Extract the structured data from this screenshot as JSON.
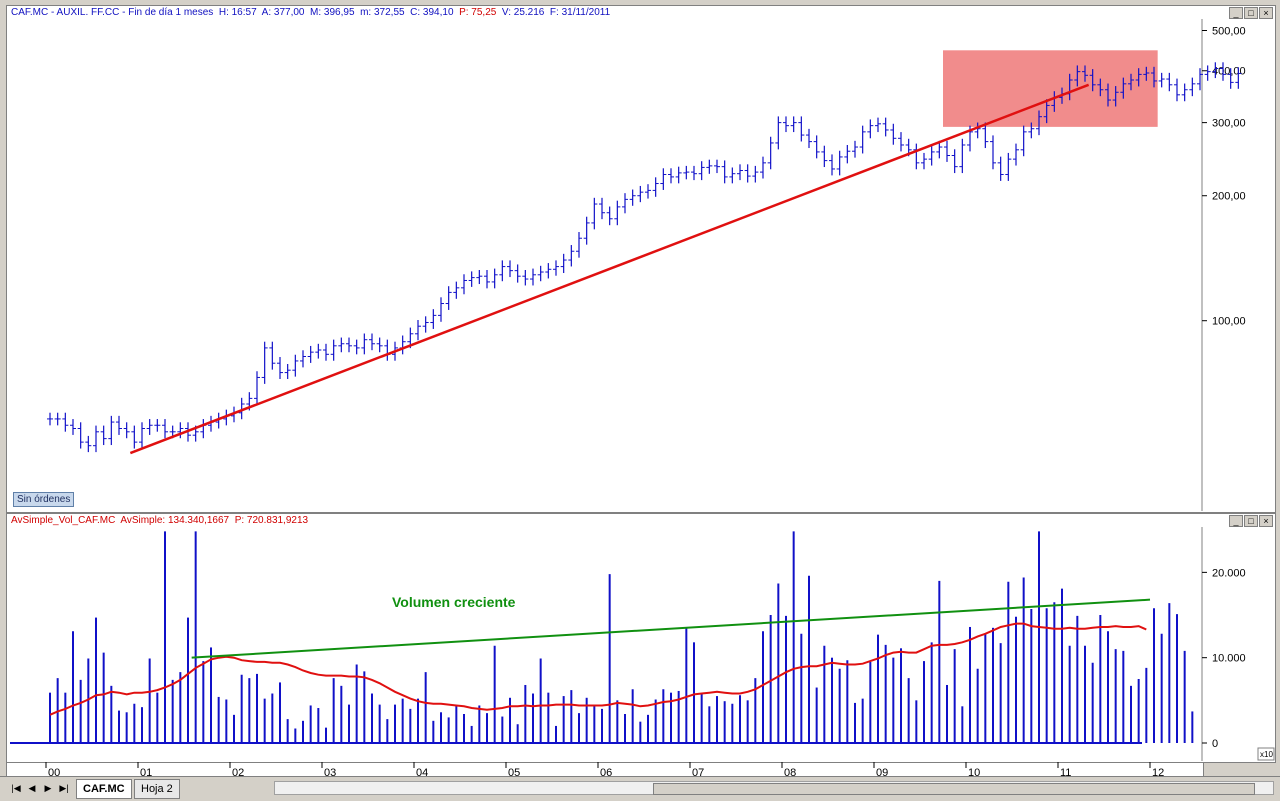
{
  "price_pane": {
    "header": {
      "symbol": "CAF.MC - AUXIL. FF.CC - Fin de día 1 meses",
      "h_label": "H: 16:57",
      "a_label": "A: 377,00",
      "m_label": "M: 396,95",
      "min_label": "m: 372,55",
      "c_label": "C: 394,10",
      "p_label": "P: 75,25",
      "v_label": "V: 25.216",
      "f_label": "F: 31/11/2011"
    },
    "sin_ordenes": "Sin órdenes"
  },
  "volume_pane": {
    "header": {
      "indicator": "AvSimple_Vol_CAF.MC",
      "avsimple_label": "AvSimple: 134.340,1667",
      "p_label": "P: 720.831,9213"
    },
    "annotation": "Volumen creciente",
    "x10": "x10"
  },
  "window_buttons": [
    "_",
    "□",
    "×"
  ],
  "tabs": [
    "CAF.MC",
    "Hoja 2"
  ],
  "nav_icons": [
    "first-icon",
    "prev-icon",
    "next-icon",
    "last-icon"
  ],
  "chart_data": [
    {
      "type": "ohlc",
      "scale": "log",
      "y_ticks": [
        "500,00",
        "400,00",
        "300,00",
        "200,00",
        "100,00"
      ],
      "y_tick_values": [
        500,
        400,
        300,
        200,
        100
      ],
      "ylim": [
        35,
        530
      ],
      "x_ticks": [
        "00",
        "01",
        "02",
        "03",
        "04",
        "05",
        "06",
        "07",
        "08",
        "09",
        "10",
        "11",
        "12"
      ],
      "series_color": "#1010c8",
      "monthly_close": [
        58,
        58,
        56,
        55,
        51,
        50,
        54,
        52,
        57,
        55,
        54,
        51,
        55,
        56,
        56,
        54,
        54,
        55,
        53,
        54,
        56,
        57,
        58,
        59,
        60,
        63,
        65,
        73,
        86,
        79,
        75,
        76,
        80,
        82,
        84,
        85,
        83,
        87,
        88,
        87,
        86,
        90,
        88,
        87,
        83,
        86,
        89,
        93,
        97,
        99,
        103,
        110,
        117,
        120,
        125,
        127,
        128,
        124,
        129,
        135,
        132,
        128,
        126,
        129,
        131,
        133,
        135,
        140,
        147,
        158,
        172,
        191,
        182,
        176,
        188,
        196,
        200,
        204,
        206,
        214,
        225,
        222,
        227,
        228,
        226,
        234,
        236,
        235,
        222,
        226,
        230,
        223,
        228,
        240,
        268,
        300,
        295,
        300,
        280,
        270,
        255,
        243,
        232,
        248,
        256,
        262,
        285,
        295,
        298,
        288,
        275,
        265,
        258,
        240,
        245,
        255,
        262,
        250,
        235,
        265,
        285,
        290,
        270,
        240,
        225,
        245,
        258,
        285,
        290,
        310,
        330,
        345,
        352,
        380,
        398,
        390,
        370,
        360,
        340,
        355,
        372,
        380,
        392,
        395,
        378,
        382,
        370,
        350,
        360,
        372,
        392,
        398,
        405,
        392,
        375,
        394
      ],
      "trendlines": [
        {
          "name": "price-support",
          "color": "#e01010",
          "from": [
            "2000-12",
            48
          ],
          "to": [
            "2011-05",
            370
          ]
        }
      ],
      "highlight_box": {
        "color": "#f08080",
        "from_date": "2009-10",
        "to_date": "2012-02",
        "low": 293,
        "high": 448
      }
    },
    {
      "type": "bar+line",
      "y_ticks": [
        "20.000",
        "10.000",
        "0"
      ],
      "y_tick_values": [
        20000,
        10000,
        0
      ],
      "ylim": [
        0,
        25200
      ],
      "bar_color": "#1010c8",
      "volume": [
        5900,
        7600,
        5900,
        13100,
        7400,
        9900,
        14700,
        10600,
        6700,
        3800,
        3600,
        4600,
        4200,
        9900,
        5900,
        24800,
        7400,
        8300,
        14700,
        24800,
        9600,
        11200,
        5400,
        5100,
        3300,
        8000,
        7600,
        8100,
        5200,
        5800,
        7100,
        2800,
        1700,
        2600,
        4400,
        4100,
        1800,
        7600,
        6700,
        4500,
        9200,
        8400,
        5800,
        4500,
        2800,
        4500,
        5200,
        4000,
        5200,
        8300,
        2600,
        3600,
        3000,
        4400,
        3400,
        2000,
        4400,
        3500,
        11400,
        3100,
        5300,
        2200,
        6800,
        5800,
        9900,
        5900,
        2000,
        5500,
        6200,
        3500,
        5300,
        4400,
        4000,
        19800,
        5000,
        3400,
        6300,
        2500,
        3300,
        5100,
        6300,
        5900,
        6100,
        13500,
        11800,
        5800,
        4300,
        5500,
        4900,
        4600,
        5600,
        5000,
        7600,
        13100,
        15000,
        18700,
        14900,
        24800,
        12800,
        19600,
        6500,
        11400,
        10000,
        8700,
        9700,
        4700,
        5200,
        9500,
        12700,
        11500,
        10000,
        11100,
        7600,
        5000,
        9600,
        11800,
        19000,
        6800,
        11000,
        4300,
        13600,
        8700,
        12900,
        13500,
        11700,
        18900,
        14800,
        19400,
        15700,
        24800,
        15800,
        16500,
        18100,
        11400,
        14900,
        11400,
        9400,
        15000,
        13100,
        11000,
        10800,
        6700,
        7500,
        8800,
        15800,
        12800,
        16400,
        15100,
        10800,
        3700
      ],
      "moving_average": [
        3300,
        3700,
        4000,
        4400,
        4700,
        5100,
        5600,
        5700,
        6000,
        5900,
        5700,
        5900,
        5900,
        6000,
        6200,
        6500,
        6900,
        7400,
        8100,
        8800,
        9300,
        9800,
        10000,
        10100,
        10000,
        9700,
        9600,
        9500,
        9500,
        9400,
        9400,
        9200,
        8900,
        8500,
        8200,
        8000,
        7900,
        7900,
        7900,
        7800,
        7800,
        7700,
        7400,
        7000,
        6500,
        6000,
        5600,
        5200,
        4900,
        4700,
        4600,
        4600,
        4500,
        4400,
        4300,
        4100,
        4000,
        3900,
        4000,
        4100,
        4300,
        4300,
        4400,
        4300,
        4400,
        4400,
        4500,
        4500,
        4500,
        4400,
        4400,
        4400,
        4400,
        4500,
        4700,
        4600,
        4500,
        4300,
        4400,
        4600,
        4800,
        4900,
        5100,
        5400,
        5700,
        5800,
        5900,
        6000,
        5900,
        5800,
        5800,
        6000,
        6300,
        6800,
        7300,
        7800,
        8300,
        8700,
        8900,
        9000,
        9000,
        9200,
        9400,
        9300,
        9200,
        9200,
        9300,
        9600,
        9900,
        10300,
        10600,
        10700,
        10600,
        10600,
        11000,
        11400,
        11500,
        11500,
        11600,
        11800,
        12100,
        12500,
        12800,
        13200,
        13600,
        13800,
        14000,
        14000,
        13700,
        13600,
        13500,
        13400,
        13400,
        13500,
        13400,
        13400,
        13500,
        13600,
        13600,
        13700,
        13600,
        13600,
        13700,
        13300
      ],
      "ma_color": "#e01010",
      "trendline": {
        "name": "volume-trend",
        "color": "#109010",
        "from": [
          "2001-08",
          10000
        ],
        "to": [
          "2012-01",
          16800
        ]
      }
    }
  ]
}
